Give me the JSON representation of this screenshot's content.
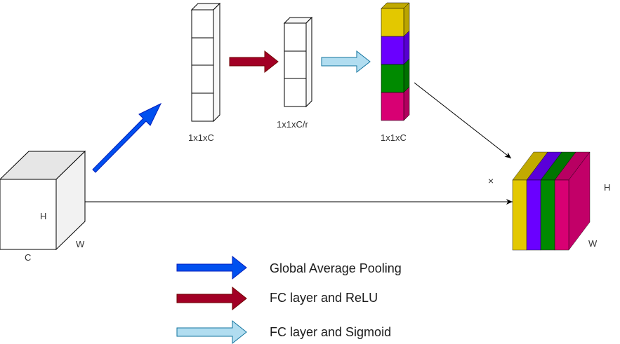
{
  "input_cube": {
    "label_h": "H",
    "label_w": "W",
    "label_c": "C"
  },
  "vectors": [
    {
      "label": "1x1xC"
    },
    {
      "label": "1x1xC/r"
    },
    {
      "label": "1x1xC"
    }
  ],
  "multiply_symbol": "×",
  "output_cube": {
    "label_h": "H",
    "label_w": "W",
    "slice_colors": [
      "#e3c800",
      "#6a00ff",
      "#008a00",
      "#d80073"
    ]
  },
  "excitation_colors": [
    "#e3c800",
    "#6a00ff",
    "#008a00",
    "#d80073"
  ],
  "legend": [
    {
      "label": "Global Average Pooling",
      "color": "#0050ef"
    },
    {
      "label": "FC layer and ReLU",
      "color": "#a20025"
    },
    {
      "label": "FC layer and Sigmoid",
      "color": "#b1ddf0"
    }
  ]
}
